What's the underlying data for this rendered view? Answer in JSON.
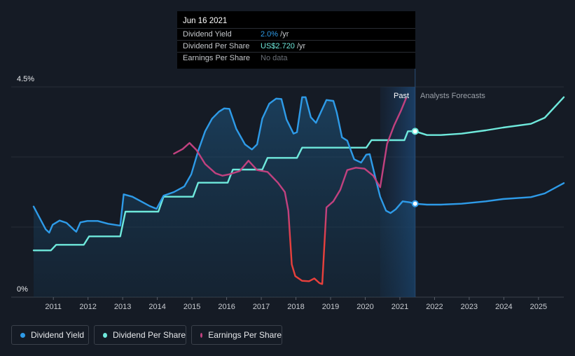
{
  "tooltip": {
    "date": "Jun 16 2021",
    "rows": [
      {
        "label": "Dividend Yield",
        "value": "2.0%",
        "unit": " /yr",
        "color": "#2e9be8"
      },
      {
        "label": "Dividend Per Share",
        "value": "US$2.720",
        "unit": " /yr",
        "color": "#6fe9dc"
      },
      {
        "label": "Earnings Per Share",
        "value": "No data",
        "unit": "",
        "color": "#6b7078"
      }
    ]
  },
  "chart_data": {
    "type": "line",
    "y_labels": {
      "top": "4.5%",
      "bottom": "0%"
    },
    "ylim": [
      0,
      4.5
    ],
    "xlim": [
      2010.45,
      2025.75
    ],
    "x_ticks": [
      "2011",
      "2012",
      "2013",
      "2014",
      "2015",
      "2016",
      "2017",
      "2018",
      "2019",
      "2020",
      "2021",
      "2022",
      "2023",
      "2024",
      "2025"
    ],
    "past_label": "Past",
    "forecast_label": "Analysts Forecasts",
    "past_end": 2021.46,
    "past_band_start": 2020.45,
    "colors": {
      "yield": "#2e9be8",
      "dps": "#6fe9dc",
      "eps": "#c1417f",
      "eps_low": "#e8403c",
      "background": "#151b25"
    },
    "series": [
      {
        "name": "Dividend Yield",
        "unit": "%",
        "points": [
          [
            2010.45,
            1.94
          ],
          [
            2010.6,
            1.73
          ],
          [
            2010.8,
            1.45
          ],
          [
            2010.9,
            1.38
          ],
          [
            2011.0,
            1.55
          ],
          [
            2011.2,
            1.64
          ],
          [
            2011.4,
            1.59
          ],
          [
            2011.6,
            1.45
          ],
          [
            2011.68,
            1.4
          ],
          [
            2011.8,
            1.6
          ],
          [
            2012.0,
            1.63
          ],
          [
            2012.3,
            1.63
          ],
          [
            2012.6,
            1.57
          ],
          [
            2012.95,
            1.53
          ],
          [
            2013.05,
            2.2
          ],
          [
            2013.3,
            2.15
          ],
          [
            2013.6,
            2.03
          ],
          [
            2013.8,
            1.95
          ],
          [
            2014.0,
            1.89
          ],
          [
            2014.2,
            2.17
          ],
          [
            2014.5,
            2.25
          ],
          [
            2014.8,
            2.37
          ],
          [
            2015.0,
            2.63
          ],
          [
            2015.2,
            3.13
          ],
          [
            2015.4,
            3.55
          ],
          [
            2015.6,
            3.82
          ],
          [
            2015.8,
            3.97
          ],
          [
            2015.95,
            4.04
          ],
          [
            2016.1,
            4.03
          ],
          [
            2016.3,
            3.6
          ],
          [
            2016.55,
            3.27
          ],
          [
            2016.75,
            3.16
          ],
          [
            2016.9,
            3.27
          ],
          [
            2017.05,
            3.82
          ],
          [
            2017.25,
            4.14
          ],
          [
            2017.45,
            4.25
          ],
          [
            2017.6,
            4.24
          ],
          [
            2017.75,
            3.8
          ],
          [
            2017.95,
            3.5
          ],
          [
            2018.05,
            3.53
          ],
          [
            2018.2,
            4.28
          ],
          [
            2018.3,
            4.28
          ],
          [
            2018.45,
            3.85
          ],
          [
            2018.6,
            3.73
          ],
          [
            2018.75,
            3.98
          ],
          [
            2018.9,
            4.22
          ],
          [
            2019.1,
            4.2
          ],
          [
            2019.2,
            3.95
          ],
          [
            2019.35,
            3.42
          ],
          [
            2019.5,
            3.35
          ],
          [
            2019.7,
            2.95
          ],
          [
            2019.9,
            2.88
          ],
          [
            2020.05,
            3.05
          ],
          [
            2020.15,
            3.06
          ],
          [
            2020.3,
            2.6
          ],
          [
            2020.45,
            2.15
          ],
          [
            2020.62,
            1.85
          ],
          [
            2020.75,
            1.8
          ],
          [
            2020.9,
            1.88
          ],
          [
            2021.1,
            2.05
          ],
          [
            2021.3,
            2.03
          ],
          [
            2021.46,
            2.0
          ]
        ]
      },
      {
        "name": "Dividend Yield forecast",
        "unit": "%",
        "points": [
          [
            2021.46,
            2.0
          ],
          [
            2021.8,
            1.98
          ],
          [
            2022.2,
            1.98
          ],
          [
            2022.8,
            2.0
          ],
          [
            2023.5,
            2.05
          ],
          [
            2024.0,
            2.1
          ],
          [
            2024.8,
            2.14
          ],
          [
            2025.2,
            2.22
          ],
          [
            2025.75,
            2.44
          ]
        ]
      },
      {
        "name": "Dividend Per Share",
        "unit": "scaled",
        "points": [
          [
            2010.45,
            1.0
          ],
          [
            2010.95,
            1.0
          ],
          [
            2011.1,
            1.12
          ],
          [
            2011.9,
            1.12
          ],
          [
            2012.05,
            1.3
          ],
          [
            2012.95,
            1.3
          ],
          [
            2013.1,
            1.83
          ],
          [
            2014.05,
            1.83
          ],
          [
            2014.2,
            2.15
          ],
          [
            2015.05,
            2.15
          ],
          [
            2015.2,
            2.45
          ],
          [
            2016.05,
            2.45
          ],
          [
            2016.2,
            2.73
          ],
          [
            2017.05,
            2.73
          ],
          [
            2017.2,
            2.98
          ],
          [
            2018.05,
            2.98
          ],
          [
            2018.2,
            3.2
          ],
          [
            2020.05,
            3.2
          ],
          [
            2020.2,
            3.36
          ],
          [
            2021.15,
            3.36
          ],
          [
            2021.25,
            3.55
          ],
          [
            2021.46,
            3.55
          ]
        ]
      },
      {
        "name": "Dividend Per Share forecast",
        "unit": "scaled",
        "points": [
          [
            2021.46,
            3.55
          ],
          [
            2021.8,
            3.47
          ],
          [
            2022.2,
            3.47
          ],
          [
            2022.8,
            3.5
          ],
          [
            2023.5,
            3.57
          ],
          [
            2024.0,
            3.63
          ],
          [
            2024.8,
            3.71
          ],
          [
            2025.2,
            3.84
          ],
          [
            2025.75,
            4.28
          ]
        ]
      },
      {
        "name": "Earnings Per Share",
        "unit": "scaled",
        "points": [
          [
            2014.5,
            3.07
          ],
          [
            2014.75,
            3.17
          ],
          [
            2014.95,
            3.3
          ],
          [
            2015.15,
            3.15
          ],
          [
            2015.4,
            2.85
          ],
          [
            2015.7,
            2.65
          ],
          [
            2015.9,
            2.6
          ],
          [
            2016.1,
            2.63
          ],
          [
            2016.4,
            2.7
          ],
          [
            2016.65,
            2.92
          ],
          [
            2016.9,
            2.72
          ],
          [
            2017.2,
            2.68
          ],
          [
            2017.5,
            2.45
          ],
          [
            2017.7,
            2.25
          ],
          [
            2017.8,
            1.85
          ],
          [
            2017.9,
            0.7
          ],
          [
            2018.0,
            0.45
          ],
          [
            2018.2,
            0.35
          ],
          [
            2018.4,
            0.34
          ],
          [
            2018.55,
            0.4
          ],
          [
            2018.7,
            0.3
          ],
          [
            2018.78,
            0.28
          ],
          [
            2018.9,
            1.92
          ],
          [
            2019.1,
            2.05
          ],
          [
            2019.3,
            2.3
          ],
          [
            2019.5,
            2.72
          ],
          [
            2019.75,
            2.77
          ],
          [
            2020.0,
            2.75
          ],
          [
            2020.25,
            2.6
          ],
          [
            2020.45,
            2.35
          ],
          [
            2020.65,
            3.28
          ],
          [
            2020.85,
            3.67
          ],
          [
            2021.05,
            3.99
          ],
          [
            2021.2,
            4.26
          ]
        ]
      }
    ]
  },
  "legend": [
    {
      "label": "Dividend Yield",
      "color": "#2e9be8"
    },
    {
      "label": "Dividend Per Share",
      "color": "#6fe9dc"
    },
    {
      "label": "Earnings Per Share",
      "color": "#c1417f"
    }
  ]
}
